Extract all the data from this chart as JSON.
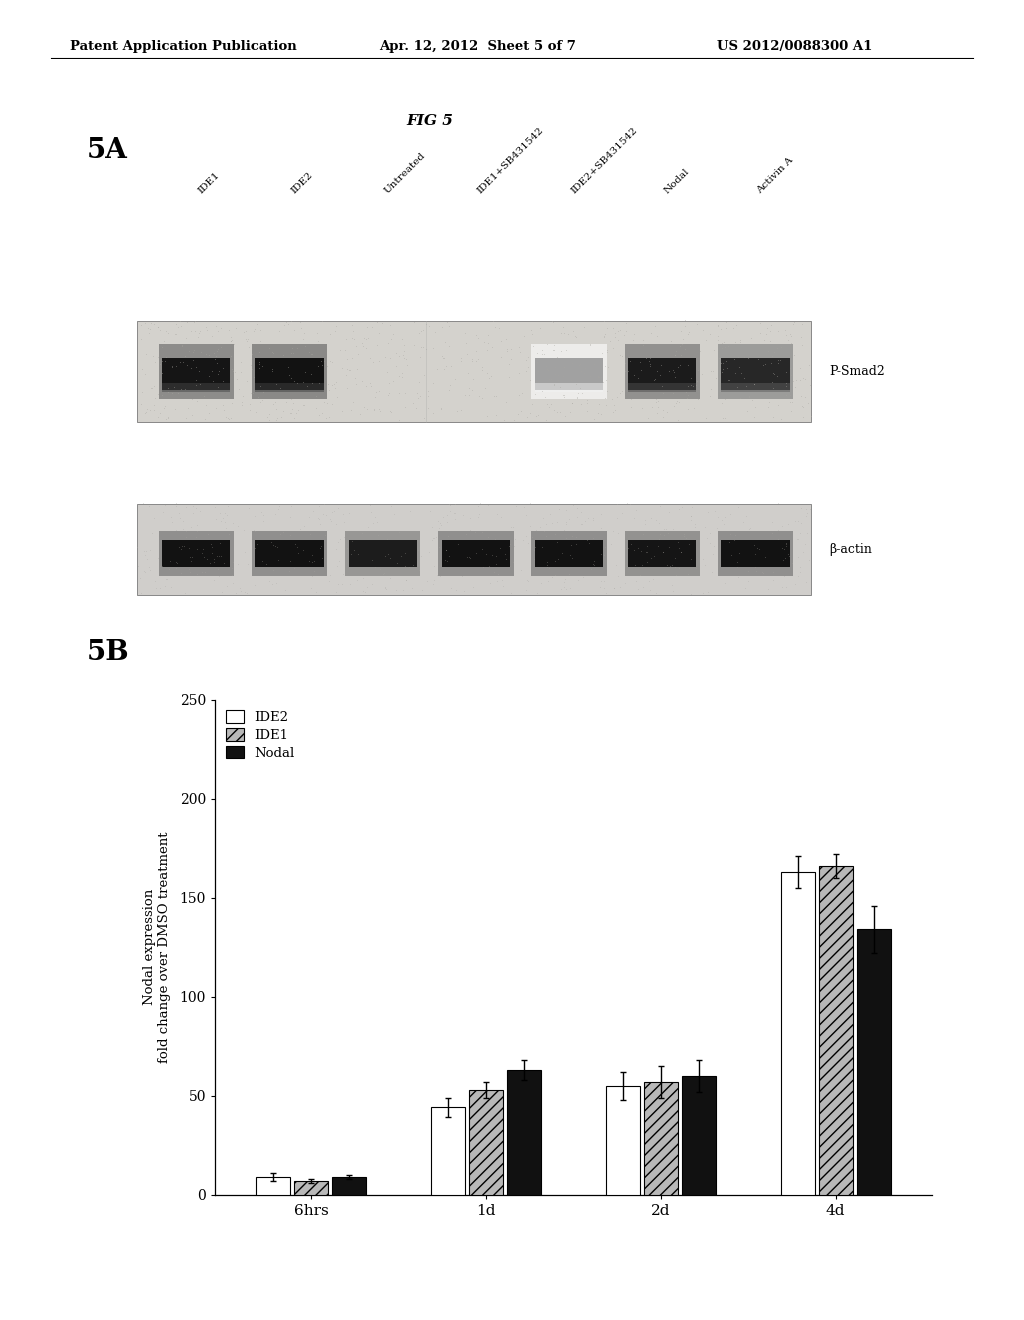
{
  "header_left": "Patent Application Publication",
  "header_center": "Apr. 12, 2012  Sheet 5 of 7",
  "header_right": "US 2012/0088300 A1",
  "fig_label": "FIG 5",
  "panel_a_label": "5A",
  "panel_b_label": "5B",
  "western_labels": [
    "IDE1",
    "IDE2",
    "Untreated",
    "IDE1+SB431542",
    "IDE2+SB431542",
    "Nodal",
    "Activin A"
  ],
  "band1_label": "P-Smad2",
  "band2_label": "β-actin",
  "bar_groups": [
    "6hrs",
    "1d",
    "2d",
    "4d"
  ],
  "bar_series": [
    "IDE2",
    "IDE1",
    "Nodal"
  ],
  "bar_values": {
    "6hrs": [
      9,
      7,
      9
    ],
    "1d": [
      44,
      53,
      63
    ],
    "2d": [
      55,
      57,
      60
    ],
    "4d": [
      163,
      166,
      134
    ]
  },
  "bar_errors": {
    "6hrs": [
      2,
      1,
      1
    ],
    "1d": [
      5,
      4,
      5
    ],
    "2d": [
      7,
      8,
      8
    ],
    "4d": [
      8,
      6,
      12
    ]
  },
  "ylabel": "Nodal expression\nfold change over DMSO treatment",
  "ylim": [
    0,
    250
  ],
  "yticks": [
    0,
    50,
    100,
    150,
    200,
    250
  ],
  "background_color": "#ffffff",
  "gel1_bg": "#d0cfc9",
  "gel2_bg": "#cecdca",
  "band_psmad2": [
    0.88,
    0.9,
    0.03,
    0.05,
    0.1,
    0.85,
    0.78
  ],
  "band_actin": [
    0.88,
    0.88,
    0.82,
    0.88,
    0.88,
    0.86,
    0.88
  ]
}
